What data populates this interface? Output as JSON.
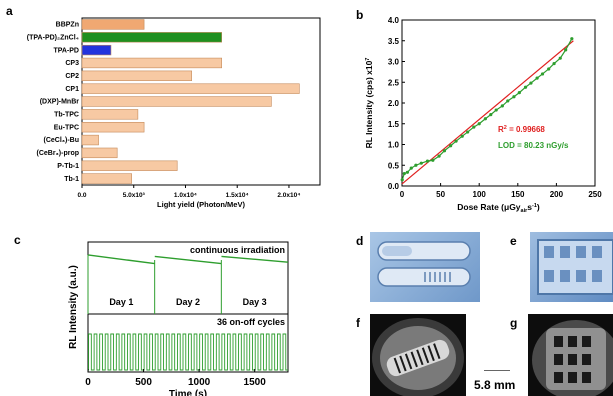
{
  "panels": {
    "a": "a",
    "b": "b",
    "c": "c",
    "d": "d",
    "e": "e",
    "f": "f",
    "g": "g"
  },
  "colors": {
    "bar_default": "#f7c9a3",
    "bar_highlight_1": "#f0a872",
    "bar_highlight_2": "#1f8f1f",
    "bar_highlight_3": "#2233dd",
    "fit_line": "#e02020",
    "data_line": "#2e9e2e",
    "r2_color": "#e02020",
    "lod_color": "#2e9e2e",
    "photo_blue": "#8fb3d9",
    "photo_dark": "#1a1a1a"
  },
  "scale_bar": "5.8 mm",
  "chart_data": [
    {
      "type": "bar",
      "orientation": "horizontal",
      "categories": [
        "BBPZn",
        "(TPA-PD)₂ZnCl₄",
        "TPA-PD",
        "CP3",
        "CP2",
        "CP1",
        "(DXP)-MnBr",
        "Tb-TPC",
        "Eu-TPC",
        "(CeCl₃)-Bu",
        "(CeBr₃)-prop",
        "P-Tb-1",
        "Tb-1"
      ],
      "values": [
        6000,
        13500,
        2800,
        13500,
        10600,
        21000,
        18300,
        5400,
        6000,
        1600,
        3400,
        9200,
        4800
      ],
      "xlabel": "Light yield (Photon/MeV)",
      "xticks": [
        "0.0",
        "5.0x10³",
        "1.0x10⁴",
        "1.5x10⁴",
        "2.0x10⁴"
      ],
      "xtick_values": [
        0,
        5000,
        10000,
        15000,
        20000
      ],
      "xlim": [
        0,
        23000
      ],
      "highlight": {
        "BBPZn": "bar_highlight_1",
        "(TPA-PD)₂ZnCl₄": "bar_highlight_2",
        "TPA-PD": "bar_highlight_3"
      }
    },
    {
      "type": "line",
      "xlabel_main": "Dose Rate (μGy",
      "xlabel_sub": "air",
      "xlabel_end": "s",
      "xlabel_sup": "-1",
      "xlabel_close": ")",
      "ylabel": "RL Intensity (cps) x10",
      "ylabel_sup": "7",
      "xlim": [
        0,
        250
      ],
      "ylim": [
        0,
        4.0
      ],
      "xticks": [
        0,
        50,
        100,
        150,
        200,
        250
      ],
      "yticks": [
        "0.0",
        "0.5",
        "1.0",
        "1.5",
        "2.0",
        "2.5",
        "3.0",
        "3.5",
        "4.0"
      ],
      "ytick_values": [
        0,
        0.5,
        1.0,
        1.5,
        2.0,
        2.5,
        3.0,
        3.5,
        4.0
      ],
      "series": [
        {
          "name": "data",
          "x": [
            0.3,
            3,
            7,
            12,
            18,
            25,
            33,
            40,
            48,
            55,
            63,
            70,
            78,
            85,
            93,
            100,
            108,
            115,
            122,
            130,
            137,
            145,
            152,
            160,
            167,
            175,
            182,
            190,
            197,
            205,
            212,
            220
          ],
          "y": [
            0.15,
            0.3,
            0.33,
            0.43,
            0.5,
            0.55,
            0.6,
            0.62,
            0.72,
            0.85,
            0.97,
            1.08,
            1.2,
            1.3,
            1.42,
            1.5,
            1.62,
            1.72,
            1.83,
            1.93,
            2.05,
            2.15,
            2.25,
            2.38,
            2.48,
            2.6,
            2.7,
            2.82,
            2.95,
            3.08,
            3.28,
            3.55
          ]
        },
        {
          "name": "fit",
          "x": [
            0,
            222
          ],
          "y": [
            0.05,
            3.5
          ]
        }
      ],
      "annotation_r2_base": "R",
      "annotation_r2_sup": "2",
      "annotation_r2_value": " = 0.99668",
      "annotation_lod": "LOD = 80.23 nGy/s"
    },
    {
      "type": "line",
      "ylabel": "RL Intensity (a.u.)",
      "xlabel": "Time (s)",
      "xlim": [
        0,
        1800
      ],
      "xticks": [
        0,
        500,
        1000,
        1500
      ],
      "top_title": "continuous irradiation",
      "bottom_title": "36 on-off cycles",
      "day_labels": [
        "Day 1",
        "Day 2",
        "Day 3"
      ],
      "day_breaks": [
        600,
        1200
      ],
      "continuous": {
        "x": [
          0,
          600,
          601,
          1200,
          1201,
          1800
        ],
        "y": [
          0.82,
          0.7,
          0.8,
          0.7,
          0.8,
          0.72
        ]
      },
      "cycles": 36
    }
  ]
}
